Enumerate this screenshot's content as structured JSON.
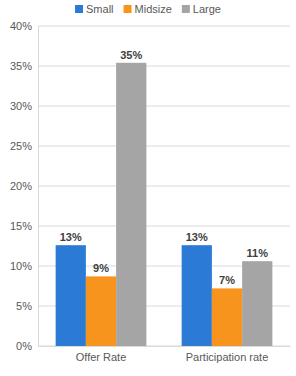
{
  "chart_data": {
    "type": "bar",
    "categories": [
      "Offer Rate",
      "Participation rate"
    ],
    "series": [
      {
        "name": "Small",
        "color": "#2b7bd6",
        "values": [
          12.6,
          12.6
        ],
        "value_labels": [
          "13%",
          "13%"
        ]
      },
      {
        "name": "Midsize",
        "color": "#f7941d",
        "values": [
          8.7,
          7.2
        ],
        "value_labels": [
          "9%",
          "7%"
        ]
      },
      {
        "name": "Large",
        "color": "#a5a5a5",
        "values": [
          35.4,
          10.6
        ],
        "value_labels": [
          "35%",
          "11%"
        ]
      }
    ],
    "ylim": [
      0,
      40
    ],
    "yticks": [
      {
        "value": 0,
        "label": "0%"
      },
      {
        "value": 5,
        "label": "5%"
      },
      {
        "value": 10,
        "label": "10%"
      },
      {
        "value": 15,
        "label": "15%"
      },
      {
        "value": 20,
        "label": "20%"
      },
      {
        "value": 25,
        "label": "25%"
      },
      {
        "value": 30,
        "label": "30%"
      },
      {
        "value": 35,
        "label": "35%"
      },
      {
        "value": 40,
        "label": "40%"
      }
    ],
    "grid": true,
    "legend": "top",
    "data_labels": true
  }
}
